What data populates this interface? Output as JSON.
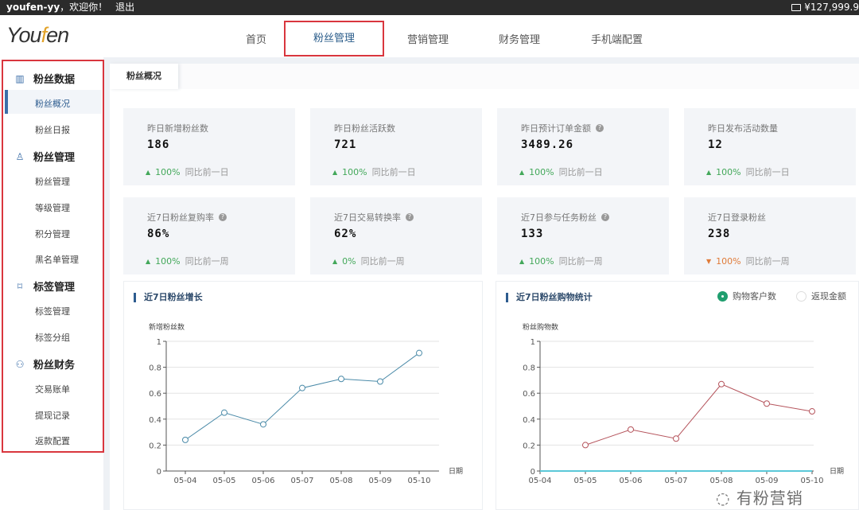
{
  "topbar": {
    "user": "youfen-yy",
    "welcome": "，欢迎你！",
    "logout": "退出",
    "balance": "¥127,999.9",
    "wallet_icon": "wallet-icon"
  },
  "header": {
    "logo_pre": "You",
    "logo_f": "f",
    "logo_post": "en",
    "nav": [
      "首页",
      "粉丝管理",
      "营销管理",
      "财务管理",
      "手机端配置"
    ],
    "active_nav": "粉丝管理"
  },
  "sidebar": {
    "groups": [
      {
        "label": "粉丝数据",
        "icon": "bar-chart-icon",
        "items": [
          "粉丝概况",
          "粉丝日报"
        ]
      },
      {
        "label": "粉丝管理",
        "icon": "user-icon",
        "items": [
          "粉丝管理",
          "等级管理",
          "积分管理",
          "黑名单管理"
        ]
      },
      {
        "label": "标签管理",
        "icon": "bookmark-icon",
        "items": [
          "标签管理",
          "标签分组"
        ]
      },
      {
        "label": "粉丝财务",
        "icon": "users-icon",
        "items": [
          "交易账单",
          "提现记录",
          "返款配置"
        ]
      }
    ],
    "active_item": "粉丝概况"
  },
  "tab": "粉丝概况",
  "cards": [
    {
      "title": "昨日新增粉丝数",
      "value": "186",
      "change": "100%",
      "dir": "up",
      "compare": "同比前一日",
      "help": false
    },
    {
      "title": "昨日粉丝活跃数",
      "value": "721",
      "change": "100%",
      "dir": "up",
      "compare": "同比前一日",
      "help": false
    },
    {
      "title": "昨日预计订单金额",
      "value": "3489.26",
      "change": "100%",
      "dir": "up",
      "compare": "同比前一日",
      "help": true
    },
    {
      "title": "昨日发布活动数量",
      "value": "12",
      "change": "100%",
      "dir": "up",
      "compare": "同比前一日",
      "help": false
    },
    {
      "title": "近7日粉丝复购率",
      "value": "86%",
      "change": "100%",
      "dir": "up",
      "compare": "同比前一周",
      "help": true
    },
    {
      "title": "近7日交易转换率",
      "value": "62%",
      "change": "0%",
      "dir": "up",
      "compare": "同比前一周",
      "help": true
    },
    {
      "title": "近7日参与任务粉丝",
      "value": "133",
      "change": "100%",
      "dir": "up",
      "compare": "同比前一周",
      "help": true
    },
    {
      "title": "近7日登录粉丝",
      "value": "238",
      "change": "100%",
      "dir": "down",
      "compare": "同比前一周",
      "help": false
    }
  ],
  "colors": {
    "up": "#43a85a",
    "down": "#e07b39",
    "accent": "#2d5c8f",
    "highlight": "#d9363e"
  },
  "chart_data": [
    {
      "type": "line",
      "title": "近7日粉丝增长",
      "ylabel": "新增粉丝数",
      "xlabel": "日期",
      "ylim": [
        0,
        1
      ],
      "yticks": [
        "0",
        "0.2",
        "0.4",
        "0.6",
        "0.8",
        "1"
      ],
      "grid": true,
      "categories": [
        "05-04",
        "05-05",
        "05-06",
        "05-07",
        "05-08",
        "05-09",
        "05-10"
      ],
      "series": [
        {
          "values": [
            0.24,
            0.45,
            0.36,
            0.64,
            0.71,
            0.69,
            0.91
          ],
          "color": "#4a8aa8"
        }
      ]
    },
    {
      "type": "line",
      "title": "近7日粉丝购物统计",
      "ylabel": "粉丝购物数",
      "xlabel": "日期",
      "ylim": [
        0,
        1
      ],
      "yticks": [
        "0",
        "0.2",
        "0.4",
        "0.6",
        "0.8",
        "1"
      ],
      "grid": true,
      "legend": [
        {
          "name": "购物客户数",
          "selected": true,
          "color": "#1f9e6e"
        },
        {
          "name": "返现金额",
          "selected": false,
          "color": "#ffffff"
        }
      ],
      "categories": [
        "05-04",
        "05-05",
        "05-06",
        "05-07",
        "05-08",
        "05-09",
        "05-10"
      ],
      "series": [
        {
          "values": [
            null,
            0.2,
            0.32,
            0.25,
            0.67,
            0.52,
            0.46
          ],
          "color": "#b5545c"
        },
        {
          "values": [
            0,
            0,
            0,
            0,
            0,
            0,
            0
          ],
          "color": "#5bc8d8"
        }
      ]
    }
  ],
  "watermark": "有粉营销"
}
